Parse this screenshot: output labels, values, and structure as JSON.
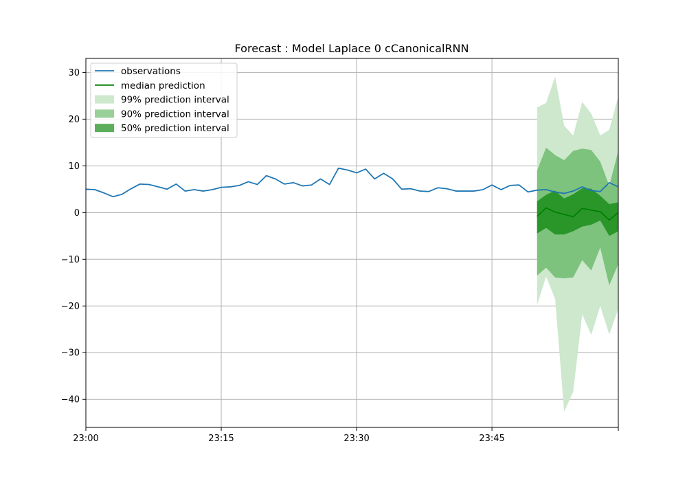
{
  "chart_data": {
    "type": "line",
    "title": "Forecast : Model Laplace 0 cCanonicalRNN",
    "xlabel": "",
    "ylabel": "",
    "x_start": "23:00",
    "x_end": "23:59",
    "x_unit": "minute",
    "xlim": [
      0,
      59
    ],
    "ylim": [
      -46,
      33
    ],
    "xticks": [
      {
        "minute": 0,
        "label": "23:00"
      },
      {
        "minute": 15,
        "label": "23:15"
      },
      {
        "minute": 30,
        "label": "23:30"
      },
      {
        "minute": 45,
        "label": "23:45"
      },
      {
        "minute": 59,
        "label": ""
      }
    ],
    "yticks": [
      30,
      20,
      10,
      0,
      -10,
      -20,
      -30,
      -40
    ],
    "grid": true,
    "legend_position": "upper-left",
    "colors": {
      "observations": "#1f77b4",
      "median": "#008000",
      "band99": "#cde8cd",
      "band90": "#7dc27d",
      "band50": "#2a962a",
      "grid": "#b0b0b0"
    },
    "legend": [
      {
        "label": "observations",
        "kind": "line",
        "color": "#1f77b4"
      },
      {
        "label": "median prediction",
        "kind": "line",
        "color": "#008000"
      },
      {
        "label": "99% prediction interval",
        "kind": "patch",
        "color": "#cde8cd"
      },
      {
        "label": "90% prediction interval",
        "kind": "patch",
        "color": "#99cf99"
      },
      {
        "label": "50% prediction interval",
        "kind": "patch",
        "color": "#5cae5c"
      }
    ],
    "observations": {
      "name": "observations",
      "x": [
        0,
        1,
        2,
        3,
        4,
        5,
        6,
        7,
        8,
        9,
        10,
        11,
        12,
        13,
        14,
        15,
        16,
        17,
        18,
        19,
        20,
        21,
        22,
        23,
        24,
        25,
        26,
        27,
        28,
        29,
        30,
        31,
        32,
        33,
        34,
        35,
        36,
        37,
        38,
        39,
        40,
        41,
        42,
        43,
        44,
        45,
        46,
        47,
        48,
        49,
        50,
        51,
        52,
        53,
        54,
        55,
        56,
        57,
        58,
        59
      ],
      "y": [
        5.0,
        4.9,
        4.2,
        3.4,
        3.9,
        5.1,
        6.1,
        6.0,
        5.5,
        5.0,
        6.1,
        4.6,
        4.9,
        4.6,
        4.9,
        5.4,
        5.5,
        5.8,
        6.6,
        6.0,
        7.9,
        7.2,
        6.1,
        6.4,
        5.7,
        5.9,
        7.2,
        6.0,
        9.5,
        9.1,
        8.5,
        9.3,
        7.2,
        8.4,
        7.2,
        5.0,
        5.1,
        4.6,
        4.5,
        5.3,
        5.1,
        4.6,
        4.6,
        4.6,
        4.9,
        5.9,
        4.9,
        5.8,
        5.9,
        4.4,
        4.8,
        4.9,
        4.4,
        4.1,
        4.6,
        5.5,
        4.7,
        4.5,
        6.4,
        5.5
      ]
    },
    "forecast": {
      "x": [
        50,
        51,
        52,
        53,
        54,
        55,
        56,
        57,
        58,
        59
      ],
      "median": [
        -0.8,
        1.0,
        0.1,
        -0.4,
        -0.9,
        0.9,
        0.5,
        0.2,
        -1.6,
        0.0
      ],
      "band50_low": [
        -4.5,
        -3.3,
        -4.7,
        -4.7,
        -4.0,
        -3.0,
        -2.6,
        -1.7,
        -5.0,
        -4.0
      ],
      "band50_high": [
        2.4,
        3.8,
        4.7,
        3.0,
        3.9,
        5.2,
        5.1,
        3.6,
        1.8,
        2.2
      ],
      "band90_low": [
        -13.5,
        -11.8,
        -13.9,
        -14.1,
        -13.9,
        -10.2,
        -12.4,
        -7.5,
        -15.6,
        -11.0
      ],
      "band90_high": [
        9.0,
        13.9,
        12.3,
        11.2,
        13.2,
        13.7,
        13.4,
        10.9,
        5.7,
        13.2
      ],
      "band99_low": [
        -19.8,
        -13.7,
        -18.5,
        -42.6,
        -38.4,
        -21.8,
        -26.2,
        -20.0,
        -26.1,
        -20.6
      ],
      "band99_high": [
        22.5,
        23.5,
        29.1,
        18.6,
        16.5,
        23.7,
        21.2,
        16.5,
        17.7,
        24.9
      ]
    }
  }
}
